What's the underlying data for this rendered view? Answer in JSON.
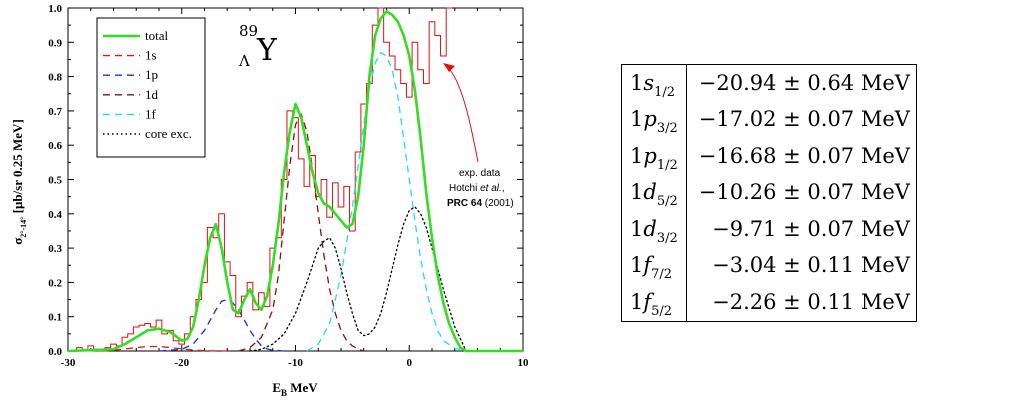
{
  "chart_data": {
    "type": "line",
    "xlabel": "E_B MeV",
    "ylabel": "σ_2°-14° [μb/sr 0.25 MeV]",
    "xlim": [
      -30,
      10
    ],
    "ylim": [
      0.0,
      1.0
    ],
    "x_ticks": [
      "-30",
      "-20",
      "-10",
      "0",
      "10"
    ],
    "y_ticks": [
      "0.0",
      "0.1",
      "0.2",
      "0.3",
      "0.4",
      "0.5",
      "0.6",
      "0.7",
      "0.8",
      "0.9",
      "1.0"
    ],
    "grid": false,
    "legend_position": "top-left",
    "title": "89 Λ Y",
    "title_parts": {
      "mass": "89",
      "hyperon": "Λ",
      "element": "Y"
    },
    "annotation": {
      "line1": "exp. data",
      "line2a": "Hotchi ",
      "line2b": "et al.",
      "line2c": ",",
      "line3a": "PRC 64",
      "line3b": " (2001)"
    },
    "colors": {
      "total": "#33dd22",
      "1s": "#ee1111",
      "1p": "#1133cc",
      "1d": "#881111",
      "1f": "#22ddee",
      "core": "#000000",
      "data": "#dd1111"
    },
    "series": [
      {
        "name": "total",
        "style": "solid",
        "x": [
          -30,
          -26,
          -25,
          -24,
          -23,
          -22,
          -21,
          -20,
          -19.5,
          -19,
          -18.5,
          -18,
          -17.5,
          -17,
          -16.5,
          -16,
          -15.5,
          -15,
          -14.5,
          -14,
          -13.5,
          -13,
          -12.5,
          -12,
          -11.5,
          -11,
          -10.5,
          -10,
          -9.5,
          -9,
          -8.5,
          -8,
          -7.5,
          -7,
          -6.5,
          -6,
          -5.5,
          -5,
          -4.5,
          -4,
          -3.5,
          -3,
          -2.5,
          -2,
          -1.5,
          -1,
          -0.5,
          0,
          0.5,
          1,
          1.5,
          2,
          2.5,
          3,
          3.5,
          4,
          4.5,
          5,
          5.5,
          10
        ],
        "y": [
          0,
          0.005,
          0.02,
          0.04,
          0.06,
          0.065,
          0.055,
          0.03,
          0.035,
          0.07,
          0.15,
          0.25,
          0.33,
          0.37,
          0.3,
          0.2,
          0.12,
          0.11,
          0.15,
          0.18,
          0.14,
          0.12,
          0.16,
          0.25,
          0.37,
          0.52,
          0.64,
          0.72,
          0.68,
          0.6,
          0.52,
          0.46,
          0.43,
          0.42,
          0.4,
          0.38,
          0.36,
          0.37,
          0.45,
          0.6,
          0.8,
          0.92,
          0.97,
          0.99,
          0.98,
          0.96,
          0.92,
          0.86,
          0.76,
          0.62,
          0.46,
          0.33,
          0.22,
          0.14,
          0.08,
          0.04,
          0.01,
          0.0,
          0.0,
          0.0
        ]
      },
      {
        "name": "1s",
        "style": "dashed",
        "x": [
          -27,
          -26,
          -25,
          -24,
          -23,
          -22,
          -21,
          -20,
          -19,
          -18,
          -17,
          -16
        ],
        "y": [
          0.0,
          0.002,
          0.006,
          0.01,
          0.013,
          0.013,
          0.01,
          0.006,
          0.003,
          0.001,
          0.0,
          0.0
        ]
      },
      {
        "name": "1p",
        "style": "dashed",
        "x": [
          -22,
          -20,
          -19,
          -18,
          -17,
          -16.5,
          -16,
          -15.5,
          -15,
          -14.5,
          -14,
          -13.5,
          -13,
          -12.5,
          -12,
          -11
        ],
        "y": [
          0.0,
          0.005,
          0.02,
          0.06,
          0.12,
          0.145,
          0.15,
          0.14,
          0.12,
          0.09,
          0.06,
          0.035,
          0.015,
          0.006,
          0.002,
          0.0
        ]
      },
      {
        "name": "1d",
        "style": "dashed",
        "x": [
          -15,
          -14,
          -13,
          -12,
          -11.5,
          -11,
          -10.5,
          -10,
          -9.5,
          -9,
          -8.5,
          -8,
          -7.5,
          -7,
          -6.5,
          -6,
          -5.5,
          -5,
          -4.5,
          -4
        ],
        "y": [
          0.0,
          0.01,
          0.04,
          0.12,
          0.22,
          0.38,
          0.54,
          0.66,
          0.69,
          0.64,
          0.53,
          0.4,
          0.28,
          0.18,
          0.11,
          0.06,
          0.03,
          0.015,
          0.006,
          0.0
        ]
      },
      {
        "name": "1f",
        "style": "dashed",
        "x": [
          -9,
          -8,
          -7,
          -6,
          -5,
          -4.5,
          -4,
          -3.5,
          -3,
          -2.5,
          -2,
          -1.5,
          -1,
          -0.5,
          0,
          0.5,
          1,
          1.5,
          2,
          2.5,
          3,
          4,
          5
        ],
        "y": [
          0.0,
          0.02,
          0.08,
          0.22,
          0.42,
          0.54,
          0.66,
          0.77,
          0.84,
          0.87,
          0.86,
          0.82,
          0.74,
          0.62,
          0.5,
          0.38,
          0.27,
          0.18,
          0.11,
          0.06,
          0.03,
          0.008,
          0.0
        ]
      },
      {
        "name": "core exc.",
        "style": "dotted",
        "x": [
          -14,
          -13,
          -12,
          -11,
          -10,
          -9,
          -8.5,
          -8,
          -7.5,
          -7,
          -6.5,
          -6,
          -5.5,
          -5,
          -4.5,
          -4,
          -3.5,
          -3,
          -2.5,
          -2,
          -1.5,
          -1,
          -0.5,
          0,
          0.5,
          1,
          1.5,
          2,
          3,
          4,
          5
        ],
        "y": [
          0.0,
          0.005,
          0.02,
          0.05,
          0.11,
          0.2,
          0.25,
          0.3,
          0.32,
          0.33,
          0.3,
          0.24,
          0.17,
          0.11,
          0.06,
          0.045,
          0.05,
          0.07,
          0.11,
          0.17,
          0.24,
          0.31,
          0.37,
          0.41,
          0.42,
          0.4,
          0.36,
          0.3,
          0.18,
          0.07,
          0.0
        ]
      }
    ],
    "experimental_data": {
      "name": "exp. data",
      "x": [
        -29.5,
        -29,
        -28.5,
        -28,
        -27.5,
        -27,
        -26.5,
        -26,
        -25.5,
        -25,
        -24.5,
        -24,
        -23.5,
        -23,
        -22.5,
        -22,
        -21.5,
        -21,
        -20.5,
        -20,
        -19.5,
        -19,
        -18.5,
        -18,
        -17.5,
        -17,
        -16.5,
        -16,
        -15.5,
        -15,
        -14.5,
        -14,
        -13.5,
        -13,
        -12.5,
        -12,
        -11.5,
        -11,
        -10.5,
        -10,
        -9.5,
        -9,
        -8.5,
        -8,
        -7.5,
        -7,
        -6.5,
        -6,
        -5.5,
        -5,
        -4.5,
        -4,
        -3.5,
        -3,
        -2.5,
        -2,
        -1.5,
        -1,
        -0.5,
        0,
        0.5,
        1,
        1.5,
        2,
        2.5,
        3,
        3.5
      ],
      "y": [
        0,
        0.01,
        0,
        0.015,
        0.005,
        0,
        0.01,
        0.02,
        0.015,
        0.04,
        0.05,
        0.07,
        0.075,
        0.08,
        0.07,
        0.09,
        0.05,
        0.06,
        0.03,
        0.02,
        0.05,
        0.1,
        0.15,
        0.2,
        0.36,
        0.33,
        0.4,
        0.26,
        0.22,
        0.1,
        0.16,
        0.2,
        0.12,
        0.17,
        0.13,
        0.3,
        0.33,
        0.5,
        0.7,
        0.68,
        0.56,
        0.48,
        0.57,
        0.45,
        0.5,
        0.39,
        0.49,
        0.42,
        0.48,
        0.35,
        0.58,
        0.72,
        0.78,
        0.95,
        1.0,
        0.9,
        0.86,
        0.82,
        0.78,
        0.74,
        0.9,
        0.82,
        0.78,
        0.96,
        0.92,
        0.86,
        1.0
      ]
    }
  },
  "legend": [
    {
      "label": "total",
      "color": "#33dd22",
      "style": "solid"
    },
    {
      "label": "1s",
      "color": "#ee1111",
      "style": "dashed"
    },
    {
      "label": "1p",
      "color": "#1133cc",
      "style": "dashed"
    },
    {
      "label": "1d",
      "color": "#881111",
      "style": "dashed"
    },
    {
      "label": "1f",
      "color": "#22ddee",
      "style": "dashed"
    },
    {
      "label": "core exc.",
      "color": "#000000",
      "style": "dotted"
    }
  ],
  "table": {
    "rows": [
      {
        "n": "1",
        "l": "s",
        "j": "1/2",
        "energy": "−20.94 ± 0.64 MeV"
      },
      {
        "n": "1",
        "l": "p",
        "j": "3/2",
        "energy": "−17.02 ± 0.07 MeV"
      },
      {
        "n": "1",
        "l": "p",
        "j": "1/2",
        "energy": "−16.68 ± 0.07 MeV"
      },
      {
        "n": "1",
        "l": "d",
        "j": "5/2",
        "energy": "−10.26 ± 0.07 MeV"
      },
      {
        "n": "1",
        "l": "d",
        "j": "3/2",
        "energy": "−9.71 ± 0.07 MeV"
      },
      {
        "n": "1",
        "l": "f",
        "j": "7/2",
        "energy": "−3.04 ± 0.11 MeV"
      },
      {
        "n": "1",
        "l": "f",
        "j": "5/2",
        "energy": "−2.26 ± 0.11 MeV"
      }
    ]
  }
}
